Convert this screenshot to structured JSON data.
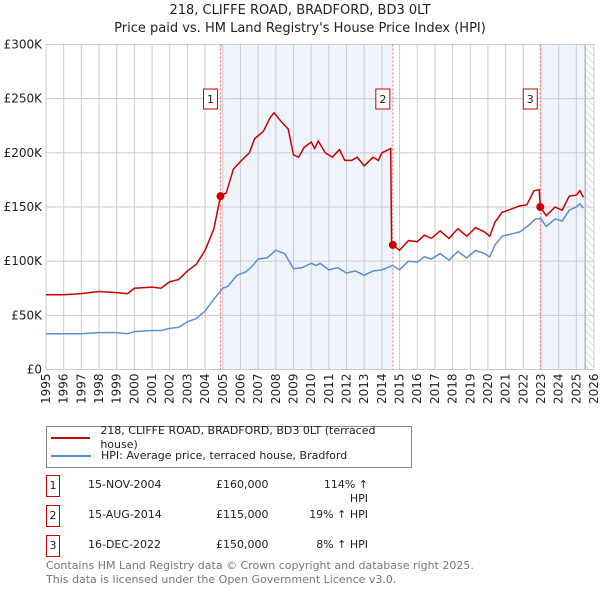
{
  "title": "218, CLIFFE ROAD, BRADFORD, BD3 0LT",
  "subtitle": "Price paid vs. HM Land Registry's House Price Index (HPI)",
  "chart_data": {
    "type": "line",
    "title": "218, CLIFFE ROAD, BRADFORD, BD3 0LT",
    "subtitle": "Price paid vs. HM Land Registry's House Price Index (HPI)",
    "xlim": [
      1995,
      2026
    ],
    "ylim": [
      0,
      300000
    ],
    "yticks": [
      {
        "v": 0,
        "label": "£0"
      },
      {
        "v": 50000,
        "label": "£50K"
      },
      {
        "v": 100000,
        "label": "£100K"
      },
      {
        "v": 150000,
        "label": "£150K"
      },
      {
        "v": 200000,
        "label": "£200K"
      },
      {
        "v": 250000,
        "label": "£250K"
      },
      {
        "v": 300000,
        "label": "£300K"
      }
    ],
    "xticks": [
      "1995",
      "1996",
      "1997",
      "1998",
      "1999",
      "2000",
      "2001",
      "2002",
      "2003",
      "2004",
      "2005",
      "2006",
      "2007",
      "2008",
      "2009",
      "2010",
      "2011",
      "2012",
      "2013",
      "2014",
      "2015",
      "2016",
      "2017",
      "2018",
      "2019",
      "2020",
      "2021",
      "2022",
      "2023",
      "2024",
      "2025",
      "2026"
    ],
    "grid": true,
    "colors": {
      "property": "#cc0000",
      "hpi": "#5b8fd4",
      "shade": "#eef3fc",
      "vline": "#ff6666"
    },
    "series": [
      {
        "name": "218, CLIFFE ROAD, BRADFORD, BD3 0LT (terraced house)",
        "points": [
          [
            1995,
            69
          ],
          [
            1996,
            69
          ],
          [
            1997,
            70
          ],
          [
            1998,
            72
          ],
          [
            1999,
            71
          ],
          [
            1999.6,
            70
          ],
          [
            2000,
            75
          ],
          [
            2001,
            76
          ],
          [
            2001.5,
            75
          ],
          [
            2002,
            81
          ],
          [
            2002.5,
            83
          ],
          [
            2003,
            91
          ],
          [
            2003.5,
            97
          ],
          [
            2004,
            110
          ],
          [
            2004.5,
            130
          ],
          [
            2004.87,
            160
          ],
          [
            2005.2,
            163
          ],
          [
            2005.6,
            185
          ],
          [
            2006,
            192
          ],
          [
            2006.5,
            200
          ],
          [
            2006.8,
            213
          ],
          [
            2007.3,
            220
          ],
          [
            2007.7,
            233
          ],
          [
            2007.9,
            237
          ],
          [
            2008.3,
            229
          ],
          [
            2008.7,
            222
          ],
          [
            2009,
            198
          ],
          [
            2009.3,
            196
          ],
          [
            2009.6,
            205
          ],
          [
            2010,
            210
          ],
          [
            2010.2,
            204
          ],
          [
            2010.4,
            211
          ],
          [
            2010.8,
            200
          ],
          [
            2011.2,
            196
          ],
          [
            2011.6,
            203
          ],
          [
            2011.9,
            193
          ],
          [
            2012.3,
            193
          ],
          [
            2012.6,
            196
          ],
          [
            2013,
            188
          ],
          [
            2013.5,
            196
          ],
          [
            2013.8,
            193
          ],
          [
            2014,
            200
          ],
          [
            2014.5,
            204
          ],
          [
            2014.55,
            115
          ],
          [
            2014.62,
            115
          ],
          [
            2015,
            110
          ],
          [
            2015.5,
            119
          ],
          [
            2016,
            118
          ],
          [
            2016.4,
            124
          ],
          [
            2016.8,
            121
          ],
          [
            2017.3,
            128
          ],
          [
            2017.8,
            121
          ],
          [
            2018.3,
            130
          ],
          [
            2018.8,
            123
          ],
          [
            2019.3,
            131
          ],
          [
            2019.8,
            127
          ],
          [
            2020.1,
            123
          ],
          [
            2020.4,
            136
          ],
          [
            2020.8,
            145
          ],
          [
            2021.3,
            148
          ],
          [
            2021.8,
            151
          ],
          [
            2022.2,
            152
          ],
          [
            2022.6,
            165
          ],
          [
            2022.9,
            166
          ],
          [
            2022.96,
            150
          ],
          [
            2023.3,
            142
          ],
          [
            2023.8,
            150
          ],
          [
            2024.2,
            147
          ],
          [
            2024.6,
            160
          ],
          [
            2025,
            161
          ],
          [
            2025.2,
            165
          ],
          [
            2025.4,
            159
          ]
        ]
      },
      {
        "name": "HPI: Average price, terraced house, Bradford",
        "points": [
          [
            1995,
            33
          ],
          [
            1997,
            33
          ],
          [
            1998,
            34
          ],
          [
            1999,
            34
          ],
          [
            1999.6,
            33
          ],
          [
            2000,
            35
          ],
          [
            2001,
            36
          ],
          [
            2001.5,
            36
          ],
          [
            2002,
            38
          ],
          [
            2002.5,
            39
          ],
          [
            2003,
            44
          ],
          [
            2003.5,
            47
          ],
          [
            2004,
            54
          ],
          [
            2004.5,
            65
          ],
          [
            2005,
            75
          ],
          [
            2005.3,
            77
          ],
          [
            2005.8,
            87
          ],
          [
            2006.3,
            90
          ],
          [
            2006.7,
            96
          ],
          [
            2007,
            102
          ],
          [
            2007.5,
            103
          ],
          [
            2008,
            110
          ],
          [
            2008.5,
            107
          ],
          [
            2009,
            93
          ],
          [
            2009.5,
            94
          ],
          [
            2010,
            98
          ],
          [
            2010.3,
            96
          ],
          [
            2010.5,
            98
          ],
          [
            2011,
            92
          ],
          [
            2011.5,
            94
          ],
          [
            2012,
            89
          ],
          [
            2012.5,
            91
          ],
          [
            2013,
            87
          ],
          [
            2013.5,
            91
          ],
          [
            2014,
            92
          ],
          [
            2014.6,
            96
          ],
          [
            2015,
            92
          ],
          [
            2015.5,
            100
          ],
          [
            2016,
            99
          ],
          [
            2016.4,
            104
          ],
          [
            2016.8,
            102
          ],
          [
            2017.3,
            107
          ],
          [
            2017.8,
            101
          ],
          [
            2018.3,
            109
          ],
          [
            2018.8,
            103
          ],
          [
            2019.3,
            110
          ],
          [
            2019.8,
            107
          ],
          [
            2020.1,
            104
          ],
          [
            2020.4,
            115
          ],
          [
            2020.8,
            123
          ],
          [
            2021.3,
            125
          ],
          [
            2021.8,
            127
          ],
          [
            2022.3,
            133
          ],
          [
            2022.7,
            139
          ],
          [
            2023,
            139
          ],
          [
            2023.3,
            132
          ],
          [
            2023.8,
            139
          ],
          [
            2024.2,
            137
          ],
          [
            2024.6,
            147
          ],
          [
            2025,
            150
          ],
          [
            2025.2,
            153
          ],
          [
            2025.4,
            149
          ]
        ]
      }
    ],
    "point_units": "x: year, y: £ thousands",
    "sales": [
      {
        "id": "1",
        "x": 2004.87,
        "y": 160000,
        "date": "15-NOV-2004",
        "price": "£160,000",
        "hpi": "114% ↑ HPI"
      },
      {
        "id": "2",
        "x": 2014.62,
        "y": 115000,
        "date": "15-AUG-2014",
        "price": "£115,000",
        "hpi": "19% ↑ HPI"
      },
      {
        "id": "3",
        "x": 2022.96,
        "y": 150000,
        "date": "16-DEC-2022",
        "price": "£150,000",
        "hpi": "8% ↑ HPI"
      }
    ],
    "shaded_ranges": [
      [
        2004.87,
        2014.62
      ],
      [
        2022.96,
        2025.5
      ]
    ],
    "forecast_hatch_from": 2025.5
  },
  "legend": {
    "property": "218, CLIFFE ROAD, BRADFORD, BD3 0LT (terraced house)",
    "hpi": "HPI: Average price, terraced house, Bradford"
  },
  "footer": {
    "line1": "Contains HM Land Registry data © Crown copyright and database right 2025.",
    "line2": "This data is licensed under the Open Government Licence v3.0."
  }
}
